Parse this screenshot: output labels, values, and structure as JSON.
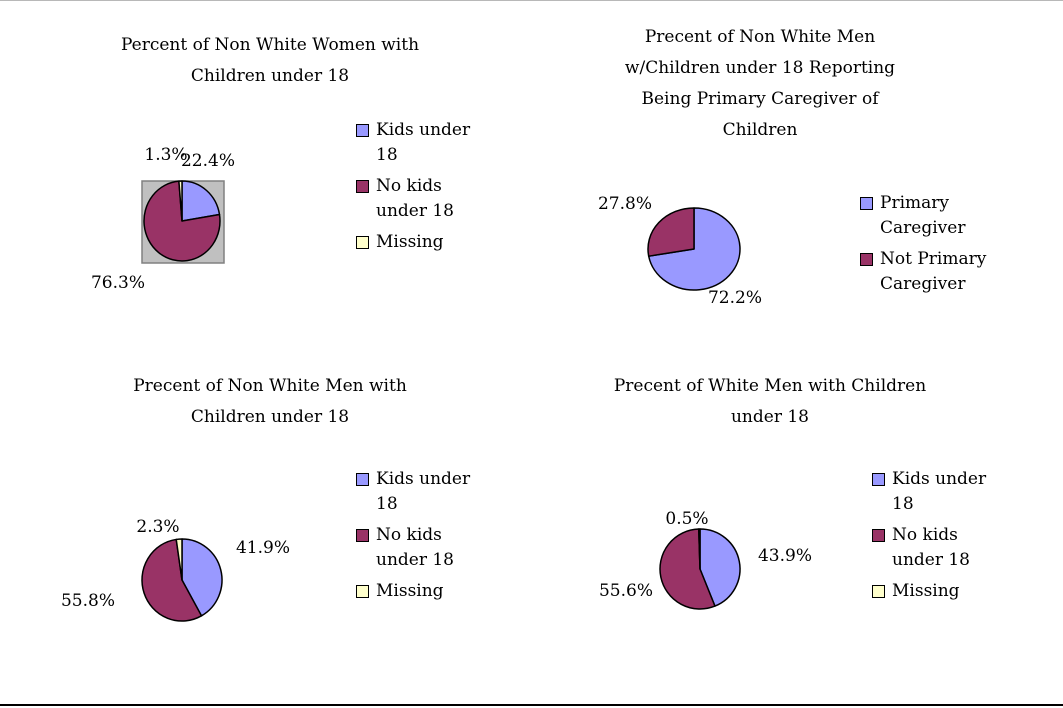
{
  "colors": {
    "kids": "#9999ff",
    "no_kids": "#993366",
    "missing": "#ffffcc",
    "plot_area": "#c0c0c0"
  },
  "chart_data": [
    {
      "type": "pie",
      "title": "Percent of Non White Women with Children under 18",
      "title_lines": [
        "Percent of Non White Women with",
        "Children under 18"
      ],
      "labels": [
        "Kids under 18",
        "No kids under 18",
        "Missing"
      ],
      "legend_lines": [
        [
          "Kids under",
          "18"
        ],
        [
          "No kids",
          "under 18"
        ],
        [
          "Missing"
        ]
      ],
      "values": [
        22.4,
        76.3,
        1.3
      ],
      "value_labels": [
        "22.4%",
        "76.3%",
        "1.3%"
      ],
      "colors": [
        "#9999ff",
        "#993366",
        "#ffffcc"
      ],
      "legend_position": "right",
      "plot_area_shaded": true
    },
    {
      "type": "pie",
      "title": "Precent of Non White Men w/Children under 18 Reporting Being Primary Caregiver of Children",
      "title_lines": [
        "Precent of Non White Men",
        "w/Children under 18 Reporting",
        "Being Primary Caregiver of",
        "Children"
      ],
      "labels": [
        "Primary Caregiver",
        "Not Primary Caregiver"
      ],
      "legend_lines": [
        [
          "Primary",
          "Caregiver"
        ],
        [
          "Not Primary",
          "Caregiver"
        ]
      ],
      "values": [
        72.2,
        27.8
      ],
      "value_labels": [
        "72.2%",
        "27.8%"
      ],
      "colors": [
        "#9999ff",
        "#993366"
      ],
      "legend_position": "right",
      "plot_area_shaded": false
    },
    {
      "type": "pie",
      "title": "Precent of Non White Men with Children under 18",
      "title_lines": [
        "Precent of Non White Men with",
        "Children under 18"
      ],
      "labels": [
        "Kids under 18",
        "No kids under 18",
        "Missing"
      ],
      "legend_lines": [
        [
          "Kids under",
          "18"
        ],
        [
          "No kids",
          "under 18"
        ],
        [
          "Missing"
        ]
      ],
      "values": [
        41.9,
        55.8,
        2.3
      ],
      "value_labels": [
        "41.9%",
        "55.8%",
        "2.3%"
      ],
      "colors": [
        "#9999ff",
        "#993366",
        "#ffffcc"
      ],
      "legend_position": "right",
      "plot_area_shaded": false
    },
    {
      "type": "pie",
      "title": "Precent of White Men with Children under 18",
      "title_lines": [
        "Precent of White Men with Children",
        "under 18"
      ],
      "labels": [
        "Kids under 18",
        "No kids under 18",
        "Missing"
      ],
      "legend_lines": [
        [
          "Kids under",
          "18"
        ],
        [
          "No kids",
          "under 18"
        ],
        [
          "Missing"
        ]
      ],
      "values": [
        43.9,
        55.6,
        0.5
      ],
      "value_labels": [
        "43.9%",
        "55.6%",
        "0.5%"
      ],
      "colors": [
        "#9999ff",
        "#993366",
        "#ffffcc"
      ],
      "legend_position": "right",
      "plot_area_shaded": false
    }
  ]
}
